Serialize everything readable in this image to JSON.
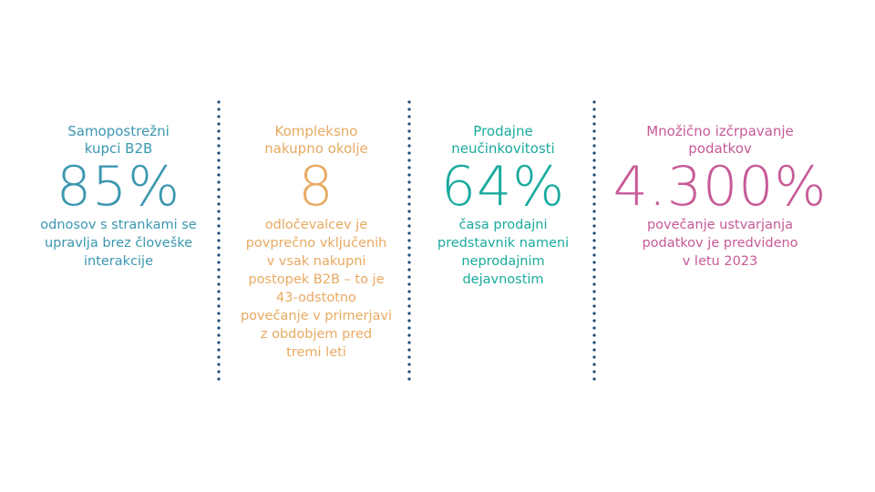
{
  "colors": {
    "divider": "#1f4e79",
    "stat1": "#3b97b0",
    "stat2": "#e8aa62",
    "stat3": "#1aaa9e",
    "stat4": "#c75a97"
  },
  "stats": [
    {
      "title_line1": "Samopostrežni",
      "title_line2": "kupci B2B",
      "value": "85%",
      "desc_lines": [
        "odnosov s strankami se",
        "upravlja brez človeške",
        "interakcije"
      ]
    },
    {
      "title_line1": "Kompleksno",
      "title_line2": "nakupno okolje",
      "value": "8",
      "desc_lines": [
        "odločevalcev je",
        "povprečno vključenih",
        "v vsak nakupni",
        "postopek B2B – to je",
        "43-odstotno",
        "povečanje v primerjavi",
        "z obdobjem pred",
        "tremi leti"
      ]
    },
    {
      "title_line1": "Prodajne",
      "title_line2": "neučinkovitosti",
      "value": "64%",
      "desc_lines": [
        "časa prodajni",
        "predstavnik nameni",
        "neprodajnim",
        "dejavnostim"
      ]
    },
    {
      "title_line1": "Množično izčrpavanje",
      "title_line2": "podatkov",
      "value": "4.300%",
      "desc_lines": [
        "povečanje ustvarjanja",
        "podatkov je predvideno",
        "v letu 2023"
      ]
    }
  ]
}
